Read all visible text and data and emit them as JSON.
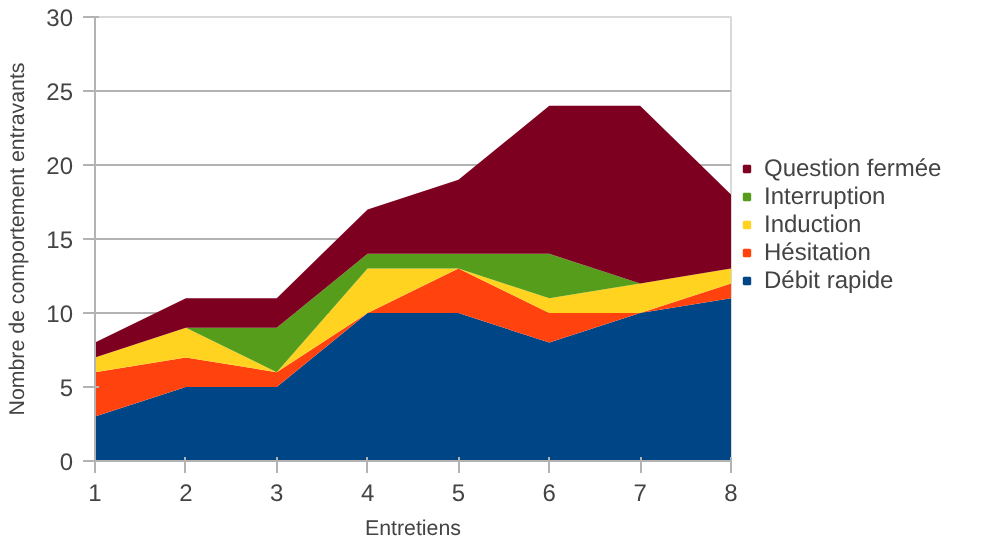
{
  "chart_data": {
    "type": "area",
    "stacked": true,
    "xlabel": "Entretiens",
    "ylabel": "Nombre de comportement entravants",
    "x": [
      1,
      2,
      3,
      4,
      5,
      6,
      7,
      8
    ],
    "series": [
      {
        "name": "Débit rapide",
        "color": "#004586",
        "values": [
          3,
          5,
          5,
          10,
          10,
          8,
          10,
          11
        ]
      },
      {
        "name": "Hésitation",
        "color": "#ff420e",
        "values": [
          3,
          2,
          1,
          0,
          3,
          2,
          0,
          1
        ]
      },
      {
        "name": "Induction",
        "color": "#ffd320",
        "values": [
          1,
          2,
          0,
          3,
          0,
          1,
          2,
          1
        ]
      },
      {
        "name": "Interruption",
        "color": "#579d1c",
        "values": [
          0,
          0,
          3,
          1,
          1,
          3,
          0,
          0
        ]
      },
      {
        "name": "Question fermée",
        "color": "#7e0021",
        "values": [
          1,
          2,
          2,
          3,
          5,
          10,
          12,
          5
        ]
      }
    ],
    "xlim": [
      1,
      8
    ],
    "xticks": [
      1,
      2,
      3,
      4,
      5,
      6,
      7,
      8
    ],
    "ylim": [
      0,
      30
    ],
    "yticks": [
      0,
      5,
      10,
      15,
      20,
      25,
      30
    ],
    "grid": "y",
    "legend": "right"
  }
}
